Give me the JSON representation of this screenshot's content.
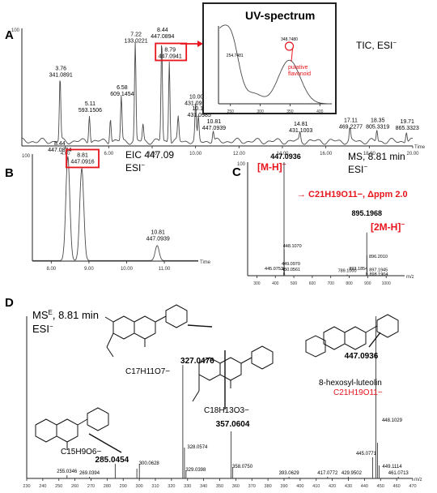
{
  "panels": {
    "A": {
      "letter": "A",
      "note": "TIC, ESI",
      "note_sup": "−"
    },
    "B": {
      "letter": "B",
      "note": "EIC 447.09",
      "note2": "ESI",
      "note2_sup": "−"
    },
    "C": {
      "letter": "C",
      "note": "MS, 8.81 min",
      "note2": "ESI",
      "note2_sup": "−",
      "ion_mh": "[M-H]",
      "ion_mh_sup": "−",
      "ion_2mh": "[2M-H]",
      "ion_2mh_sup": "−",
      "formula": "→ C21H19O11−, Δppm 2.0"
    },
    "D": {
      "letter": "D",
      "title": "MS",
      "title_sup": "E",
      "title_rest": ", 8.81 min",
      "sub": "ESI",
      "sub_sup": "−",
      "f1": "C17H11O7−",
      "f2": "C18H13O3−",
      "f3": "C15H9O6−",
      "f4": "C21H19O11−",
      "compound": "8-hexosyl-luteolin"
    }
  },
  "uv_inset": {
    "title": "UV-spectrum",
    "peak1": "254.7481",
    "peak2": "348.7480",
    "annotation_line1": "putative",
    "annotation_line2": "flavonoid"
  },
  "colors": {
    "red": "#e8141b",
    "trace": "#4a4a4a",
    "axis": "#222222"
  },
  "chart_data": [
    {
      "type": "line",
      "panel": "A",
      "title": "TIC, ESI−",
      "xlabel": "Time",
      "xlim": [
        2.0,
        20.0
      ],
      "x_ticks": [
        "4.00",
        "6.00",
        "8.00",
        "10.00",
        "12.00",
        "14.00",
        "16.00",
        "18.00",
        "20.00"
      ],
      "y_tick_top": "100",
      "peaks": [
        {
          "rt": 3.76,
          "rel": 54,
          "label": [
            "3.76",
            "341.0891"
          ]
        },
        {
          "rt": 5.11,
          "rel": 24,
          "label": [
            "5.11",
            "593.1506"
          ]
        },
        {
          "rt": 6.08,
          "rel": 21,
          "label": []
        },
        {
          "rt": 6.58,
          "rel": 38,
          "label": [
            "6.58",
            "609.1454"
          ]
        },
        {
          "rt": 7.22,
          "rel": 83,
          "label": [
            "7.22",
            "133.0221"
          ]
        },
        {
          "rt": 7.58,
          "rel": 14,
          "label": []
        },
        {
          "rt": 8.44,
          "rel": 87,
          "label": [
            "8.44",
            "447.0894"
          ]
        },
        {
          "rt": 8.79,
          "rel": 70,
          "label": [
            "8.79",
            "447.0941"
          ],
          "highlight": true
        },
        {
          "rt": 9.2,
          "rel": 20,
          "label": []
        },
        {
          "rt": 10.0,
          "rel": 30,
          "label": [
            "10.00",
            "431.0997"
          ]
        },
        {
          "rt": 10.13,
          "rel": 20,
          "label": [
            "10.13",
            "431.0985"
          ]
        },
        {
          "rt": 10.81,
          "rel": 9,
          "label": [
            "10.81",
            "447.0939"
          ]
        },
        {
          "rt": 14.81,
          "rel": 7,
          "label": [
            "14.81",
            "431.1003"
          ]
        },
        {
          "rt": 17.11,
          "rel": 10,
          "label": [
            "17.11",
            "469.2277"
          ]
        },
        {
          "rt": 18.35,
          "rel": 10,
          "label": [
            "18.35",
            "805.3319"
          ]
        },
        {
          "rt": 19.71,
          "rel": 9,
          "label": [
            "19.71",
            "865.3323"
          ]
        }
      ]
    },
    {
      "type": "line",
      "panel": "A-inset",
      "title": "UV-spectrum",
      "x_ticks": [
        "250",
        "300",
        "350",
        "400"
      ],
      "peaks": [
        {
          "nm": 254.7481,
          "label": "254.7481"
        },
        {
          "nm": 348.748,
          "label": "348.7480"
        }
      ]
    },
    {
      "type": "line",
      "panel": "B",
      "title": "EIC 447.09 ESI−",
      "xlabel": "Time",
      "xlim": [
        7.5,
        11.9
      ],
      "x_ticks": [
        "8.00",
        "9.00",
        "10.00",
        "11.00"
      ],
      "y_tick_top": "100",
      "peaks": [
        {
          "rt": 8.44,
          "rel": 97,
          "label": [
            "8.44",
            "447.0894"
          ]
        },
        {
          "rt": 8.81,
          "rel": 86,
          "label": [
            "8.81",
            "447.0916"
          ],
          "highlight": true
        },
        {
          "rt": 10.81,
          "rel": 14,
          "label": [
            "10.81",
            "447.0939"
          ]
        }
      ]
    },
    {
      "type": "bar",
      "panel": "C",
      "title": "MS, 8.81 min ESI−",
      "xlabel": "m/z",
      "xlim": [
        250,
        1100
      ],
      "x_ticks": [
        "300",
        "400",
        "500",
        "600",
        "700",
        "800",
        "900",
        "1000"
      ],
      "y_tick_top": "100",
      "peaks": [
        {
          "mz": 447.0936,
          "rel": 100,
          "label": "447.0936",
          "red": true
        },
        {
          "mz": 445.0753,
          "rel": 3,
          "label": "445.0753"
        },
        {
          "mz": 448.107,
          "rel": 23,
          "label": "448.1070"
        },
        {
          "mz": 449.097,
          "rel": 7,
          "label": "449.0970"
        },
        {
          "mz": 450.0561,
          "rel": 2,
          "label": "450.0561"
        },
        {
          "mz": 789.1,
          "rel": 1,
          "label": "789.1000"
        },
        {
          "mz": 893.1854,
          "rel": 3,
          "label": "893.1854"
        },
        {
          "mz": 895.1968,
          "rel": 38,
          "label": "895.1968",
          "red": true
        },
        {
          "mz": 896.201,
          "rel": 18,
          "label": "896.2010"
        },
        {
          "mz": 897.1945,
          "rel": 6,
          "label": "897.1945"
        },
        {
          "mz": 898.1904,
          "rel": 2,
          "label": "898.1904"
        }
      ]
    },
    {
      "type": "bar",
      "panel": "D",
      "title": "MSE, 8.81 min ESI−",
      "xlabel": "m/z",
      "xlim": [
        230,
        470
      ],
      "x_ticks": [
        "230",
        "240",
        "250",
        "260",
        "270",
        "280",
        "290",
        "300",
        "310",
        "320",
        "330",
        "340",
        "350",
        "360",
        "370",
        "380",
        "390",
        "400",
        "410",
        "420",
        "430",
        "440",
        "450",
        "460",
        "470"
      ],
      "peaks": [
        {
          "mz": 255.0346,
          "rel": 2,
          "label": "255.0346"
        },
        {
          "mz": 269.0394,
          "rel": 1,
          "label": "269.0394"
        },
        {
          "mz": 285.0454,
          "rel": 9,
          "label": "285.0454",
          "bold": true
        },
        {
          "mz": 298.5,
          "rel": 6,
          "label": ""
        },
        {
          "mz": 300.0628,
          "rel": 9,
          "label": "300.0628"
        },
        {
          "mz": 327.0476,
          "rel": 70,
          "label": "327.0476",
          "bold": true
        },
        {
          "mz": 328.0574,
          "rel": 19,
          "label": "328.0574"
        },
        {
          "mz": 329.0398,
          "rel": 5,
          "label": "329.0398"
        },
        {
          "mz": 357.0604,
          "rel": 29,
          "label": "357.0604",
          "bold": true
        },
        {
          "mz": 358.075,
          "rel": 7,
          "label": "358.0750"
        },
        {
          "mz": 393.0629,
          "rel": 1,
          "label": "393.0629"
        },
        {
          "mz": 417.0772,
          "rel": 1,
          "label": "417.0772"
        },
        {
          "mz": 429.9502,
          "rel": 1,
          "label": "429.9502"
        },
        {
          "mz": 445.0771,
          "rel": 13,
          "label": "445.0771"
        },
        {
          "mz": 447.0936,
          "rel": 100,
          "label": "447.0936",
          "bold": true
        },
        {
          "mz": 448.1029,
          "rel": 22,
          "label": "448.1029"
        },
        {
          "mz": 449.1114,
          "rel": 8,
          "label": "449.1114"
        },
        {
          "mz": 461.0713,
          "rel": 1,
          "label": "461.0713"
        }
      ]
    }
  ]
}
